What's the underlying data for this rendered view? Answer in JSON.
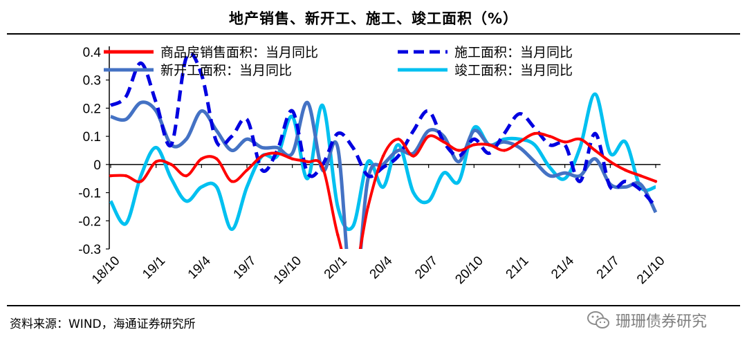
{
  "title": "地产销售、新开工、施工、竣工面积（%）",
  "source": "资料来源：WIND，海通证券研究所",
  "watermark": "珊珊债券研究",
  "chart_data": {
    "type": "line",
    "x": [
      "18/10",
      "18/11",
      "18/12",
      "19/1",
      "19/2",
      "19/3",
      "19/4",
      "19/5",
      "19/6",
      "19/7",
      "19/8",
      "19/9",
      "19/10",
      "19/11",
      "19/12",
      "20/1",
      "20/2",
      "20/3",
      "20/4",
      "20/5",
      "20/6",
      "20/7",
      "20/8",
      "20/9",
      "20/10",
      "20/11",
      "20/12",
      "21/1",
      "21/2",
      "21/3",
      "21/4",
      "21/5",
      "21/6",
      "21/7",
      "21/8",
      "21/9",
      "21/10"
    ],
    "x_tick_labels": [
      "18/10",
      "19/1",
      "19/4",
      "19/7",
      "19/10",
      "20/1",
      "20/4",
      "20/7",
      "20/10",
      "21/1",
      "21/4",
      "21/7",
      "21/10"
    ],
    "ylim": [
      -0.3,
      0.4
    ],
    "yticks": [
      "-0.3",
      "-0.2",
      "-0.1",
      "0",
      "0.1",
      "0.2",
      "0.3",
      "0.4"
    ],
    "series": [
      {
        "name": "商品房销售面积：当月同比",
        "color": "#ff0000",
        "dash": "solid",
        "values": [
          -0.04,
          -0.04,
          -0.06,
          0.01,
          0.0,
          -0.04,
          0.02,
          0.02,
          -0.06,
          -0.02,
          0.03,
          0.04,
          0.02,
          0.01,
          -0.01,
          -0.25,
          -0.4,
          -0.15,
          0.03,
          0.09,
          0.03,
          0.1,
          0.08,
          0.05,
          0.07,
          0.07,
          0.05,
          0.08,
          0.11,
          0.1,
          0.08,
          0.09,
          0.05,
          0.01,
          -0.02,
          -0.04,
          -0.06
        ]
      },
      {
        "name": "施工面积：当月同比",
        "color": "#0000e0",
        "dash": "dash",
        "values": [
          0.21,
          0.24,
          0.36,
          0.22,
          0.07,
          0.38,
          0.32,
          0.08,
          0.1,
          0.16,
          -0.02,
          0.05,
          0.19,
          -0.03,
          0.0,
          0.11,
          0.06,
          -0.04,
          -0.01,
          0.03,
          0.12,
          0.19,
          0.08,
          0.03,
          0.09,
          0.04,
          0.11,
          0.18,
          0.13,
          0.07,
          0.07,
          -0.06,
          0.11,
          -0.08,
          -0.06,
          -0.09,
          -0.15
        ]
      },
      {
        "name": "新开工面积：当月同比",
        "color": "#4472c4",
        "dash": "solid",
        "values": [
          0.17,
          0.16,
          0.22,
          0.19,
          0.07,
          0.09,
          0.19,
          0.12,
          0.05,
          0.09,
          0.06,
          0.06,
          0.04,
          0.22,
          -0.02,
          0.06,
          -0.5,
          -0.05,
          0.0,
          0.05,
          0.04,
          0.12,
          0.1,
          0.01,
          0.12,
          0.07,
          0.08,
          0.06,
          0.01,
          -0.04,
          -0.03,
          -0.04,
          0.02,
          -0.07,
          -0.08,
          -0.07,
          -0.17
        ]
      },
      {
        "name": "竣工面积：当月同比",
        "color": "#00c0f0",
        "dash": "solid",
        "values": [
          -0.13,
          -0.21,
          -0.04,
          0.06,
          -0.05,
          -0.13,
          -0.08,
          -0.08,
          -0.23,
          -0.08,
          0.03,
          0.03,
          0.17,
          -0.05,
          0.21,
          -0.15,
          -0.22,
          0.01,
          -0.08,
          0.07,
          -0.1,
          -0.13,
          -0.03,
          -0.06,
          0.13,
          0.07,
          0.09,
          0.09,
          0.07,
          -0.01,
          -0.05,
          0.06,
          0.25,
          0.04,
          0.08,
          -0.08,
          -0.08
        ]
      }
    ]
  }
}
